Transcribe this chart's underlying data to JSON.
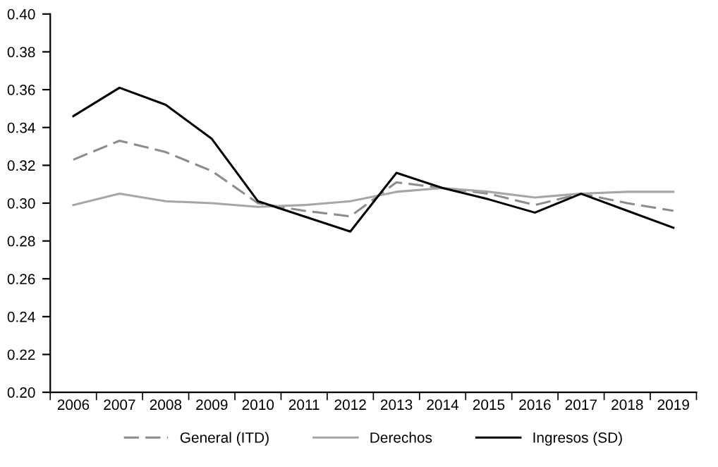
{
  "chart_data": {
    "type": "line",
    "categories": [
      "2006",
      "2007",
      "2008",
      "2009",
      "2010",
      "2011",
      "2012",
      "2013",
      "2014",
      "2015",
      "2016",
      "2017",
      "2018",
      "2019"
    ],
    "series": [
      {
        "name": "General (ITD)",
        "color": "#8c8c8c",
        "line_style": "dashed",
        "values": [
          0.323,
          0.333,
          0.327,
          0.317,
          0.3,
          0.296,
          0.293,
          0.311,
          0.308,
          0.305,
          0.299,
          0.305,
          0.3,
          0.296
        ]
      },
      {
        "name": "Derechos",
        "color": "#a6a6a6",
        "line_style": "solid",
        "values": [
          0.299,
          0.305,
          0.301,
          0.3,
          0.298,
          0.299,
          0.301,
          0.306,
          0.308,
          0.306,
          0.303,
          0.305,
          0.306,
          0.306
        ]
      },
      {
        "name": "Ingresos (SD)",
        "color": "#000000",
        "line_style": "solid",
        "values": [
          0.346,
          0.361,
          0.352,
          0.334,
          0.301,
          0.293,
          0.285,
          0.316,
          0.308,
          0.302,
          0.295,
          0.305,
          0.296,
          0.287
        ]
      }
    ],
    "ylim": [
      0.2,
      0.4
    ],
    "yticks": [
      {
        "value": 0.2,
        "label": "0.20"
      },
      0.22,
      0.24,
      0.26,
      0.28,
      {
        "value": 0.3,
        "label": "0.30"
      },
      0.32,
      0.34,
      0.36,
      0.38,
      {
        "value": 0.4,
        "label": "0.40"
      }
    ],
    "grid": false,
    "legend": "bottom",
    "marker": "none"
  }
}
